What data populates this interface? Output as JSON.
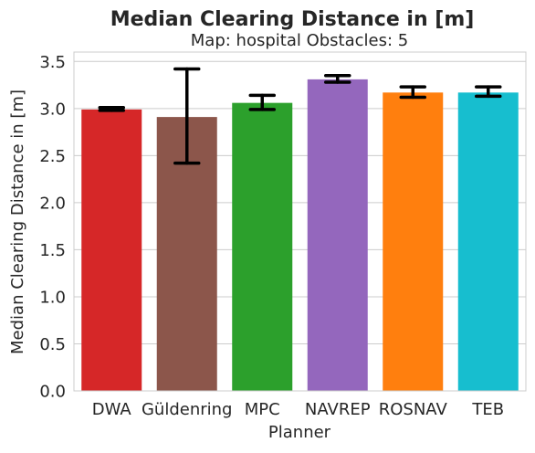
{
  "chart_data": {
    "type": "bar",
    "title": "Median Clearing Distance in [m]",
    "subtitle": "Map: hospital Obstacles: 5",
    "xlabel": "Planner",
    "ylabel": "Median Clearing Distance in [m]",
    "ylim": [
      0,
      3.6
    ],
    "yticks": [
      "0.0",
      "0.5",
      "1.0",
      "1.5",
      "2.0",
      "2.5",
      "3.0",
      "3.5"
    ],
    "categories": [
      "DWA",
      "Güldenring",
      "MPC",
      "NAVREP",
      "ROSNAV",
      "TEB"
    ],
    "values": [
      2.99,
      2.91,
      3.06,
      3.31,
      3.17,
      3.17
    ],
    "error_low": [
      2.98,
      2.42,
      2.99,
      3.28,
      3.12,
      3.13
    ],
    "error_high": [
      3.01,
      3.42,
      3.14,
      3.35,
      3.23,
      3.23
    ],
    "colors": [
      "#d62728",
      "#8c564b",
      "#2ca02c",
      "#9467bd",
      "#ff7f0e",
      "#17becf"
    ],
    "grid": "horizontal",
    "legend": "none"
  }
}
